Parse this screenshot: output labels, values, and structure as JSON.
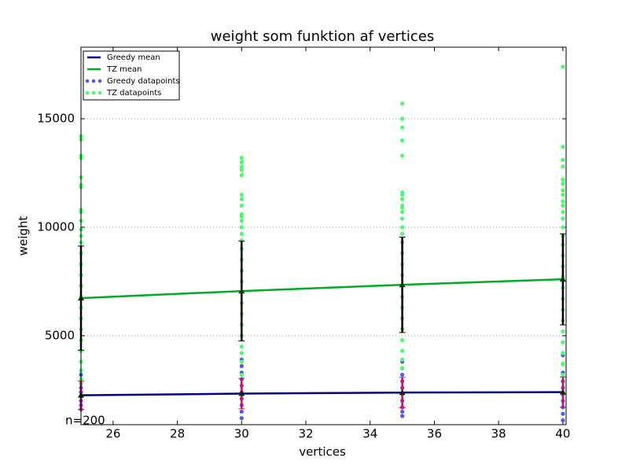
{
  "chart_data": {
    "type": "line",
    "title": "weight som funktion af vertices",
    "x_label": "vertices",
    "y_label": "weight",
    "annotation": "n=200",
    "xlim": [
      25,
      40.1
    ],
    "xticks": [
      26,
      28,
      30,
      32,
      34,
      36,
      38,
      40
    ],
    "ylim": [
      900,
      18300
    ],
    "yticks": [
      5000,
      10000,
      15000
    ],
    "grid": true,
    "legend": "upper left",
    "series": [
      {
        "name": "Greedy datapoints",
        "type": "scatter",
        "color": "#5555ff",
        "x": [
          25,
          25,
          25,
          25,
          25,
          25,
          25,
          25,
          25,
          25,
          30,
          30,
          30,
          30,
          30,
          30,
          30,
          30,
          30,
          30,
          35,
          35,
          35,
          35,
          35,
          35,
          35,
          35,
          35,
          35,
          40,
          40,
          40,
          40,
          40,
          40,
          40,
          40,
          40,
          40
        ],
        "values": [
          3400,
          3200,
          3000,
          2800,
          2600,
          2400,
          2200,
          2000,
          1800,
          1600,
          3900,
          3600,
          3300,
          3000,
          2700,
          2400,
          2100,
          1800,
          1500,
          1200,
          3800,
          3500,
          3200,
          2900,
          2600,
          2300,
          2000,
          1700,
          1500,
          1300,
          4100,
          3700,
          3300,
          2900,
          2600,
          2300,
          2000,
          1700,
          1400,
          1100
        ]
      },
      {
        "name": "TZ datapoints",
        "type": "scatter",
        "color": "#44ff66",
        "x": [
          25,
          25,
          25,
          25,
          25,
          25,
          25,
          25,
          25,
          25,
          25,
          25,
          25,
          25,
          25,
          25,
          25,
          25,
          25,
          25,
          25,
          25,
          25,
          25,
          25,
          25,
          25,
          30,
          30,
          30,
          30,
          30,
          30,
          30,
          30,
          30,
          30,
          30,
          30,
          30,
          30,
          30,
          30,
          30,
          30,
          30,
          30,
          30,
          30,
          30,
          30,
          30,
          30,
          30,
          35,
          35,
          35,
          35,
          35,
          35,
          35,
          35,
          35,
          35,
          35,
          35,
          35,
          35,
          35,
          35,
          35,
          35,
          35,
          35,
          35,
          35,
          35,
          35,
          35,
          35,
          35,
          40,
          40,
          40,
          40,
          40,
          40,
          40,
          40,
          40,
          40,
          40,
          40,
          40,
          40,
          40,
          40,
          40,
          40,
          40,
          40,
          40,
          40,
          40,
          40,
          40,
          40,
          40
        ],
        "values": [
          14200,
          14050,
          13300,
          13200,
          12300,
          11950,
          11850,
          10800,
          10700,
          10300,
          9900,
          9600,
          9300,
          8800,
          8300,
          7800,
          7300,
          6800,
          6300,
          5800,
          5300,
          4800,
          4300,
          3800,
          3400,
          3000,
          2800,
          13200,
          13000,
          12800,
          12650,
          12400,
          11500,
          11300,
          11000,
          10600,
          10500,
          10300,
          10000,
          9700,
          9400,
          9000,
          8500,
          8000,
          7500,
          7000,
          6500,
          6000,
          5500,
          5000,
          4500,
          4200,
          3800,
          3200,
          15700,
          15000,
          14600,
          14000,
          13300,
          11600,
          11500,
          11300,
          11000,
          10900,
          10700,
          10400,
          10000,
          9700,
          9300,
          8800,
          8300,
          7800,
          7300,
          6800,
          6300,
          5800,
          5300,
          4800,
          4300,
          3900,
          3500,
          17400,
          13700,
          13100,
          12800,
          12200,
          12000,
          11700,
          11500,
          11200,
          11000,
          10700,
          10400,
          10000,
          9600,
          9200,
          8700,
          8200,
          7700,
          7200,
          6700,
          6200,
          5700,
          5200,
          4700,
          4200,
          3700,
          3200
        ]
      },
      {
        "name": "Greedy mean",
        "type": "line",
        "color": "#00008b",
        "error_color": "#cc1155",
        "x": [
          25,
          30,
          35,
          40
        ],
        "values": [
          2256,
          2330,
          2380,
          2400
        ],
        "errors": [
          650,
          700,
          700,
          700
        ]
      },
      {
        "name": "TZ mean",
        "type": "line",
        "color": "#00aa22",
        "error_color": "#000000",
        "x": [
          25,
          30,
          35,
          40
        ],
        "values": [
          6733,
          7058,
          7347,
          7600
        ],
        "errors": [
          2400,
          2300,
          2200,
          2100
        ]
      }
    ]
  }
}
